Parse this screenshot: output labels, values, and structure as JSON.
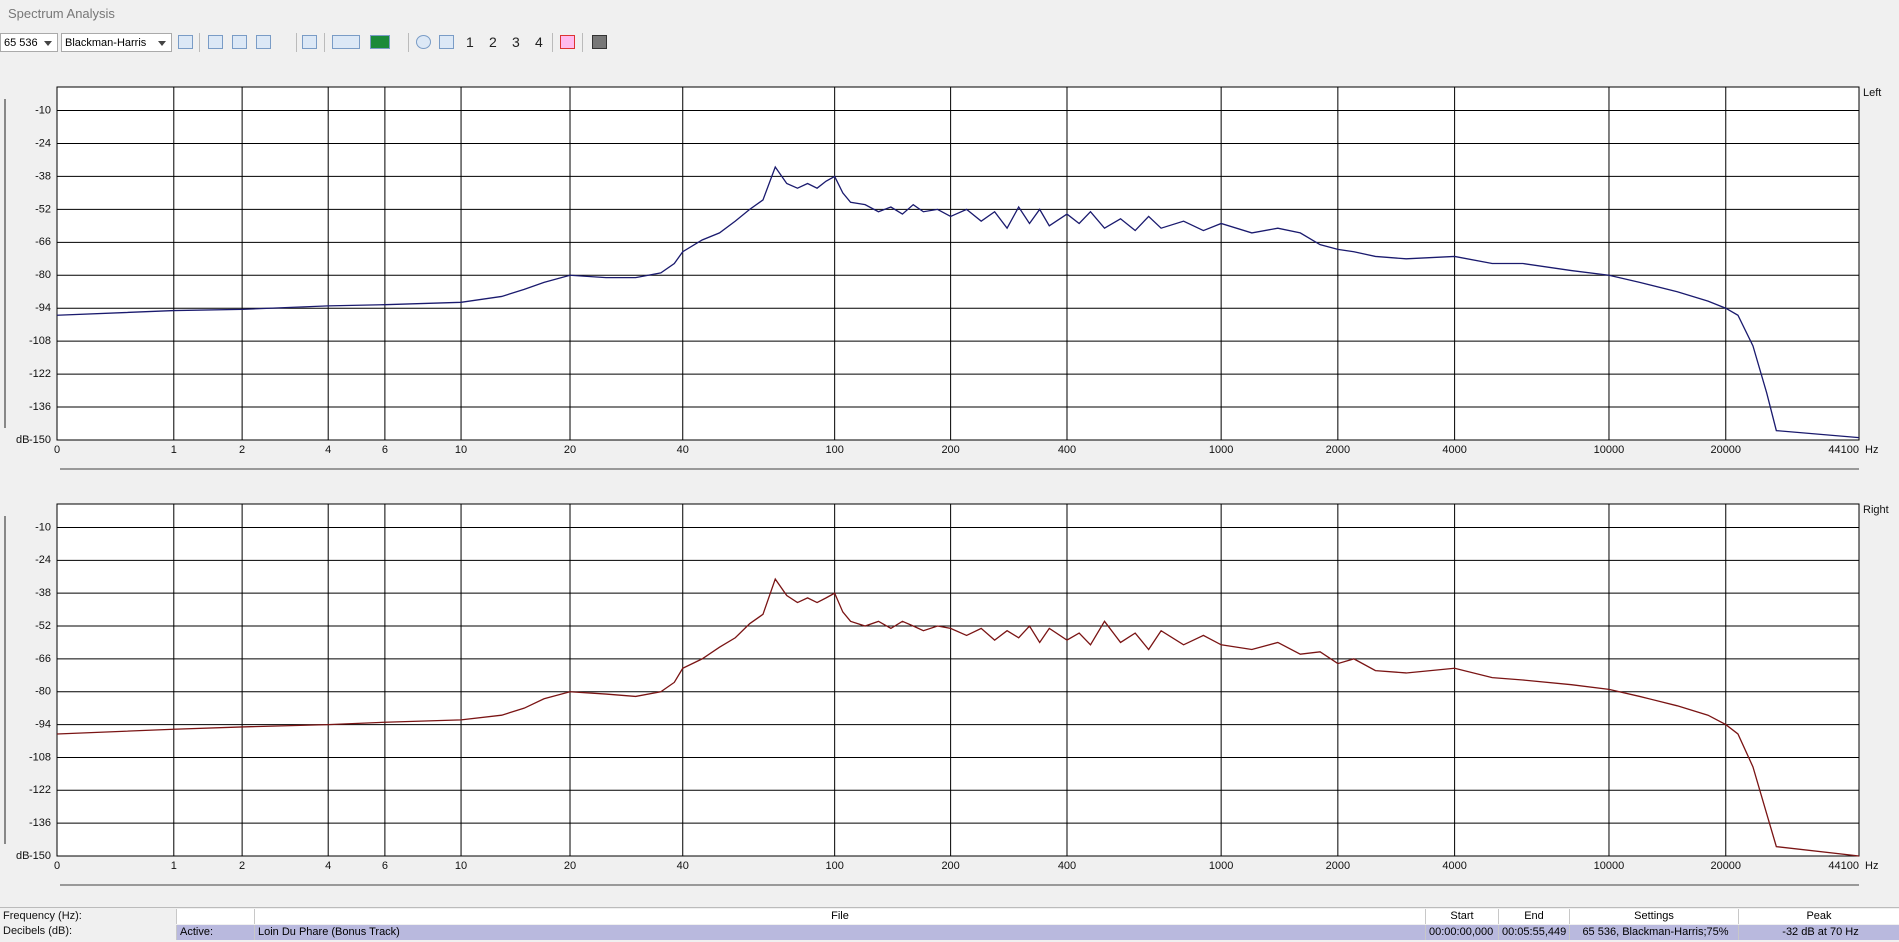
{
  "window_title": "Spectrum Analysis",
  "toolbar": {
    "fft_size": "65 536",
    "window": "Blackman-Harris",
    "channel_buttons": [
      "1",
      "2",
      "3",
      "4"
    ]
  },
  "chart_data": [
    {
      "type": "line",
      "label": "Left",
      "x_unit": "Hz",
      "y_unit": "dB",
      "xscale": "log1p",
      "grid": true,
      "xlim": [
        0,
        44100
      ],
      "ylim": [
        -150,
        0
      ],
      "xticks": [
        0,
        1,
        2,
        4,
        6,
        10,
        20,
        40,
        100,
        200,
        400,
        1000,
        2000,
        4000,
        10000,
        20000,
        44100
      ],
      "yticks": [
        -10,
        -24,
        -38,
        -52,
        -66,
        -80,
        -94,
        -108,
        -122,
        -136,
        -150
      ],
      "x": [
        0,
        1,
        2,
        4,
        6,
        10,
        13,
        15,
        17,
        20,
        25,
        30,
        35,
        38,
        40,
        45,
        50,
        55,
        60,
        65,
        70,
        75,
        80,
        85,
        90,
        95,
        100,
        105,
        110,
        120,
        130,
        140,
        150,
        160,
        170,
        185,
        200,
        220,
        240,
        260,
        280,
        300,
        320,
        340,
        360,
        400,
        430,
        460,
        500,
        550,
        600,
        650,
        700,
        800,
        900,
        1000,
        1200,
        1400,
        1600,
        1800,
        2000,
        2200,
        2500,
        3000,
        4000,
        5000,
        6000,
        8000,
        10000,
        12000,
        15000,
        18000,
        20000,
        21500,
        23500,
        25500,
        27000,
        44100
      ],
      "series": [
        {
          "color": "#1a1a6e",
          "values": [
            -97,
            -95,
            -94.5,
            -93,
            -92.5,
            -91.5,
            -89,
            -86,
            -83,
            -80,
            -81,
            -81,
            -79,
            -75,
            -70,
            -65,
            -62,
            -57,
            -52,
            -48,
            -34,
            -41,
            -43,
            -41,
            -43,
            -40,
            -38,
            -45,
            -49,
            -50,
            -53,
            -51,
            -54,
            -50,
            -53,
            -52,
            -55,
            -52,
            -57,
            -53,
            -60,
            -51,
            -58,
            -52,
            -59,
            -54,
            -58,
            -53,
            -60,
            -56,
            -61,
            -55,
            -60,
            -57,
            -61,
            -58,
            -62,
            -60,
            -62,
            -67,
            -69,
            -70,
            -72,
            -73,
            -72,
            -75,
            -75,
            -78,
            -80,
            -83,
            -87,
            -91,
            -94,
            -97,
            -110,
            -130,
            -146,
            -149
          ]
        }
      ]
    },
    {
      "type": "line",
      "label": "Right",
      "x_unit": "Hz",
      "y_unit": "dB",
      "xscale": "log1p",
      "grid": true,
      "xlim": [
        0,
        44100
      ],
      "ylim": [
        -150,
        0
      ],
      "xticks": [
        0,
        1,
        2,
        4,
        6,
        10,
        20,
        40,
        100,
        200,
        400,
        1000,
        2000,
        4000,
        10000,
        20000,
        44100
      ],
      "yticks": [
        -10,
        -24,
        -38,
        -52,
        -66,
        -80,
        -94,
        -108,
        -122,
        -136,
        -150
      ],
      "x": [
        0,
        1,
        2,
        4,
        6,
        10,
        13,
        15,
        17,
        20,
        25,
        30,
        35,
        38,
        40,
        45,
        50,
        55,
        60,
        65,
        70,
        75,
        80,
        85,
        90,
        95,
        100,
        105,
        110,
        120,
        130,
        140,
        150,
        160,
        170,
        185,
        200,
        220,
        240,
        260,
        280,
        300,
        320,
        340,
        360,
        400,
        430,
        460,
        500,
        550,
        600,
        650,
        700,
        800,
        900,
        1000,
        1200,
        1400,
        1600,
        1800,
        2000,
        2200,
        2500,
        3000,
        4000,
        5000,
        6000,
        8000,
        10000,
        12000,
        15000,
        18000,
        20000,
        21500,
        23500,
        25500,
        27000,
        44100
      ],
      "series": [
        {
          "color": "#7a1414",
          "values": [
            -98,
            -96,
            -95,
            -94,
            -93,
            -92,
            -90,
            -87,
            -83,
            -80,
            -81,
            -82,
            -80,
            -76,
            -70,
            -66,
            -61,
            -57,
            -51,
            -47,
            -32,
            -39,
            -42,
            -40,
            -42,
            -40,
            -38,
            -46,
            -50,
            -52,
            -50,
            -53,
            -50,
            -52,
            -54,
            -52,
            -53,
            -56,
            -53,
            -58,
            -54,
            -57,
            -52,
            -59,
            -53,
            -58,
            -55,
            -60,
            -50,
            -59,
            -55,
            -62,
            -54,
            -60,
            -56,
            -60,
            -62,
            -59,
            -64,
            -63,
            -68,
            -66,
            -71,
            -72,
            -70,
            -74,
            -75,
            -77,
            -79,
            -82,
            -86,
            -90,
            -94,
            -98,
            -112,
            -132,
            -146,
            -150
          ]
        }
      ]
    }
  ],
  "status": {
    "frequency_label": "Frequency (Hz):",
    "decibels_label": "Decibels (dB):"
  },
  "table": {
    "columns": [
      "File",
      "Start",
      "End",
      "Settings",
      "Peak"
    ],
    "row_label": "Active:",
    "row": [
      "Loin Du Phare (Bonus Track)",
      "00:00:00,000",
      "00:05:55,449",
      "65 536, Blackman-Harris;75%",
      "-32 dB at 70 Hz"
    ]
  }
}
